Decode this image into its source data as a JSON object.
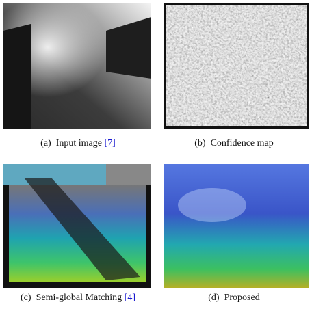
{
  "panels": [
    {
      "label": "(a)",
      "caption": "Input image",
      "citation": "[7]"
    },
    {
      "label": "(b)",
      "caption": "Confidence map"
    },
    {
      "label": "(c)",
      "caption": "Semi-global Matching",
      "citation": "[4]"
    },
    {
      "label": "(d)",
      "caption": "Proposed"
    }
  ]
}
